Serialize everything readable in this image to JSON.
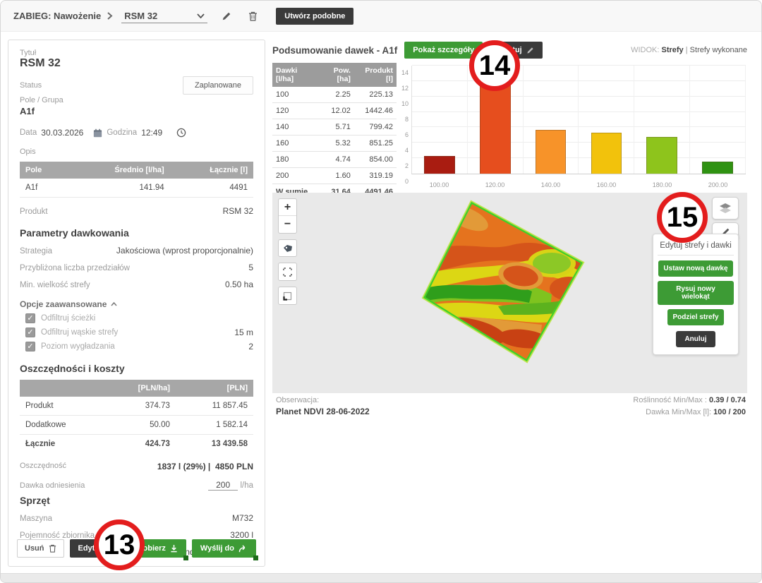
{
  "topbar": {
    "breadcrumb": "ZABIEG: Nawożenie",
    "treatment_name": "RSM 32",
    "create_similar_label": "Utwórz podobne"
  },
  "left_panel": {
    "title_label": "Tytuł",
    "title_value": "RSM 32",
    "status_label": "Status",
    "status_value": "Zaplanowane",
    "field_group_label": "Pole / Grupa",
    "field_group_value": "A1f",
    "date_label": "Data",
    "date_value": "30.03.2026",
    "time_label": "Godzina",
    "time_value": "12:49",
    "description_label": "Opis",
    "field_table": {
      "headers": [
        "Pole",
        "Średnio [l/ha]",
        "Łącznie [l]"
      ],
      "rows": [
        [
          "A1f",
          "141.94",
          "4491"
        ]
      ]
    },
    "product_label": "Produkt",
    "product_value": "RSM 32",
    "dosing_section_title": "Parametry dawkowania",
    "strategy_label": "Strategia",
    "strategy_value": "Jakościowa (wprost proporcjonalnie)",
    "intervals_label": "Przybliżona liczba przedziałów",
    "intervals_value": "5",
    "min_zone_label": "Min. wielkość strefy",
    "min_zone_value": "0.50 ha",
    "advanced_options_label": "Opcje zaawansowane",
    "advanced_options": [
      {
        "label": "Odfiltruj ścieżki",
        "checked": true,
        "value": ""
      },
      {
        "label": "Odfiltruj wąskie strefy",
        "checked": true,
        "value": "15 m"
      },
      {
        "label": "Poziom wygładzania",
        "checked": true,
        "value": "2"
      }
    ],
    "costs_section_title": "Oszczędności i koszty",
    "costs_table": {
      "headers": [
        "",
        "[PLN/ha]",
        "[PLN]"
      ],
      "rows": [
        {
          "label": "Produkt",
          "per_ha": "374.73",
          "total": "11 857.45",
          "bold": false
        },
        {
          "label": "Dodatkowe",
          "per_ha": "50.00",
          "total": "1 582.14",
          "bold": false
        },
        {
          "label": "Łącznie",
          "per_ha": "424.73",
          "total": "13 439.58",
          "bold": true
        }
      ]
    },
    "savings_label": "Oszczędność",
    "savings_liters": "1837 l (29%) |",
    "savings_pln": "4850 PLN",
    "reference_dose_label": "Dawka odniesienia",
    "reference_dose_value": "200",
    "reference_dose_unit": "l/ha",
    "equipment_section_title": "Sprzęt",
    "machine_label": "Maszyna",
    "machine_value": "M732",
    "tank_label": "Pojemność zbiornika",
    "tank_value": "3200 l",
    "terminal_label": "Terminal",
    "terminal_value": "CommandCenter GS4600",
    "delete_label": "Usuń",
    "edit_label": "Edytuj",
    "download_label": "Pobierz",
    "send_label": "Wyślij do"
  },
  "summary": {
    "title": "Podsumowanie dawek - A1f",
    "show_details_label": "Pokaż szczegóły",
    "edit_label": "Edytuj",
    "view_label": "WIDOK:",
    "view_zones": "Strefy",
    "view_separator": "|",
    "view_zones_done": "Strefy wykonane",
    "dose_table": {
      "headers": [
        "Dawki [l/ha]",
        "Pow. [ha]",
        "Produkt [l]"
      ],
      "rows": [
        [
          "100",
          "2.25",
          "225.13"
        ],
        [
          "120",
          "12.02",
          "1442.46"
        ],
        [
          "140",
          "5.71",
          "799.42"
        ],
        [
          "160",
          "5.32",
          "851.25"
        ],
        [
          "180",
          "4.74",
          "854.00"
        ],
        [
          "200",
          "1.60",
          "319.19"
        ]
      ],
      "total_label": "W sumie",
      "total_area": "31.64",
      "total_product": "4491.46"
    }
  },
  "chart_data": {
    "type": "bar",
    "categories": [
      "100.00",
      "120.00",
      "140.00",
      "160.00",
      "180.00",
      "200.00"
    ],
    "values": [
      2.25,
      12.02,
      5.71,
      5.32,
      4.74,
      1.6
    ],
    "colors": [
      "#a91c11",
      "#e64e1e",
      "#f79329",
      "#f2c20c",
      "#8ec41c",
      "#2f9212"
    ],
    "title": "",
    "xlabel": "",
    "ylabel": "",
    "ylim": [
      0,
      14
    ],
    "yticks": [
      0,
      2,
      4,
      6,
      8,
      10,
      12,
      14
    ],
    "grid": true,
    "legend": "none"
  },
  "map": {
    "zoom_in_label": "+",
    "zoom_out_label": "−",
    "edit_panel": {
      "title": "Edytuj strefy i dawki",
      "buttons": [
        "Ustaw nową dawkę",
        "Rysuj nowy wielokąt",
        "Podziel strefy"
      ],
      "cancel_label": "Anuluj"
    },
    "observation_label": "Obserwacja:",
    "observation_value": "Planet NDVI 28-06-2022",
    "vegetation_label": "Roślinność Min/Max :",
    "vegetation_value": "0.39 / 0.74",
    "dose_minmax_label": "Dawka Min/Max [l]:",
    "dose_minmax_value": "100 / 200"
  },
  "annotations": {
    "a13": "13",
    "a14": "14",
    "a15": "15"
  }
}
